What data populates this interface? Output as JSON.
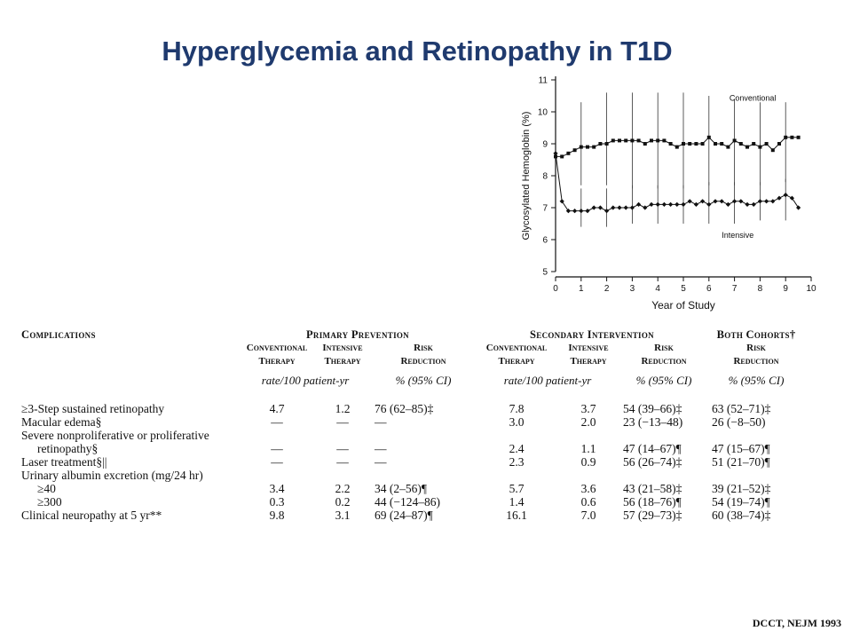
{
  "slide": {
    "title": "Hyperglycemia and Retinopathy in T1D",
    "citation": "DCCT, NEJM 1993"
  },
  "chart_data": {
    "type": "line",
    "xlabel": "Year of Study",
    "ylabel": "Glycosylated Hemoglobin (%)",
    "xlim": [
      0,
      10
    ],
    "ylim": [
      5,
      11
    ],
    "xticks": [
      0,
      1,
      2,
      3,
      4,
      5,
      6,
      7,
      8,
      9,
      10
    ],
    "yticks": [
      5,
      6,
      7,
      8,
      9,
      10,
      11
    ],
    "series": [
      {
        "name": "Conventional",
        "color": "#111111",
        "marker": "square",
        "x": [
          0,
          0.25,
          0.5,
          0.75,
          1,
          1.25,
          1.5,
          1.75,
          2,
          2.25,
          2.5,
          2.75,
          3,
          3.25,
          3.5,
          3.75,
          4,
          4.25,
          4.5,
          4.75,
          5,
          5.25,
          5.5,
          5.75,
          6,
          6.25,
          6.5,
          6.75,
          7,
          7.25,
          7.5,
          7.75,
          8,
          8.25,
          8.5,
          8.75,
          9,
          9.25,
          9.5
        ],
        "y": [
          8.6,
          8.6,
          8.7,
          8.8,
          8.9,
          8.9,
          8.9,
          9.0,
          9.0,
          9.1,
          9.1,
          9.1,
          9.1,
          9.1,
          9.0,
          9.1,
          9.1,
          9.1,
          9.0,
          8.9,
          9.0,
          9.0,
          9.0,
          9.0,
          9.2,
          9.0,
          9.0,
          8.9,
          9.1,
          9.0,
          8.9,
          9.0,
          8.9,
          9.0,
          8.8,
          9.0,
          9.2,
          9.2,
          9.2
        ],
        "error_x": [
          1,
          2,
          3,
          4,
          5,
          6,
          7,
          8,
          9
        ],
        "error_low": [
          7.7,
          7.7,
          7.6,
          7.6,
          7.6,
          7.7,
          7.7,
          7.7,
          7.8
        ],
        "error_high": [
          10.3,
          10.6,
          10.6,
          10.6,
          10.6,
          10.5,
          10.4,
          10.3,
          10.3
        ]
      },
      {
        "name": "Intensive",
        "color": "#111111",
        "marker": "diamond",
        "x": [
          0,
          0.25,
          0.5,
          0.75,
          1,
          1.25,
          1.5,
          1.75,
          2,
          2.25,
          2.5,
          2.75,
          3,
          3.25,
          3.5,
          3.75,
          4,
          4.25,
          4.5,
          4.75,
          5,
          5.25,
          5.5,
          5.75,
          6,
          6.25,
          6.5,
          6.75,
          7,
          7.25,
          7.5,
          7.75,
          8,
          8.25,
          8.5,
          8.75,
          9,
          9.25,
          9.5
        ],
        "y": [
          8.7,
          7.2,
          6.9,
          6.9,
          6.9,
          6.9,
          7.0,
          7.0,
          6.9,
          7.0,
          7.0,
          7.0,
          7.0,
          7.1,
          7.0,
          7.1,
          7.1,
          7.1,
          7.1,
          7.1,
          7.1,
          7.2,
          7.1,
          7.2,
          7.1,
          7.2,
          7.2,
          7.1,
          7.2,
          7.2,
          7.1,
          7.1,
          7.2,
          7.2,
          7.2,
          7.3,
          7.4,
          7.3,
          7.0
        ],
        "error_x": [
          1,
          2,
          3,
          4,
          5,
          6,
          7,
          8,
          9
        ],
        "error_low": [
          6.4,
          6.4,
          6.5,
          6.5,
          6.5,
          6.5,
          6.5,
          6.6,
          6.6
        ],
        "error_high": [
          7.6,
          7.6,
          7.7,
          7.7,
          7.7,
          7.8,
          7.8,
          7.8,
          7.9
        ]
      }
    ]
  },
  "table": {
    "h1": {
      "complications": "Complications",
      "primary": "Primary Prevention",
      "secondary": "Secondary Intervention",
      "both": "Both Cohorts†"
    },
    "h2": {
      "conv1": "Conventional",
      "conv2": "Therapy",
      "int1": "Intensive",
      "int2": "Therapy",
      "risk1": "Risk",
      "risk2": "Reduction"
    },
    "units": {
      "rate": "rate/100 patient-yr",
      "pct": "% (95% CI)"
    },
    "rows": [
      {
        "label": "≥3-Step sustained retinopathy",
        "v": [
          "4.7",
          "1.2",
          "76 (62–85)‡",
          "7.8",
          "3.7",
          "54 (39–66)‡",
          "63 (52–71)‡"
        ]
      },
      {
        "label": "Macular edema§",
        "v": [
          "—",
          "—",
          "—",
          "3.0",
          "2.0",
          "23 (−13–48)",
          "26 (−8–50)"
        ]
      },
      {
        "label": "Severe nonproliferative or proliferative",
        "label2": "retinopathy§",
        "v": [
          "—",
          "—",
          "—",
          "2.4",
          "1.1",
          "47 (14–67)¶",
          "47 (15–67)¶"
        ]
      },
      {
        "label": "Laser treatment§||",
        "v": [
          "—",
          "—",
          "—",
          "2.3",
          "0.9",
          "56 (26–74)‡",
          "51 (21–70)¶"
        ]
      },
      {
        "label": "Urinary albumin excretion (mg/24 hr)"
      },
      {
        "label": "≥40",
        "indent": true,
        "v": [
          "3.4",
          "2.2",
          "34 (2–56)¶",
          "5.7",
          "3.6",
          "43 (21–58)‡",
          "39 (21–52)‡"
        ]
      },
      {
        "label": "≥300",
        "indent": true,
        "v": [
          "0.3",
          "0.2",
          "44 (−124–86)",
          "1.4",
          "0.6",
          "56 (18–76)¶",
          "54 (19–74)¶"
        ]
      },
      {
        "label": "Clinical neuropathy at 5 yr**",
        "v": [
          "9.8",
          "3.1",
          "69 (24–87)¶",
          "16.1",
          "7.0",
          "57 (29–73)‡",
          "60 (38–74)‡"
        ]
      }
    ]
  }
}
